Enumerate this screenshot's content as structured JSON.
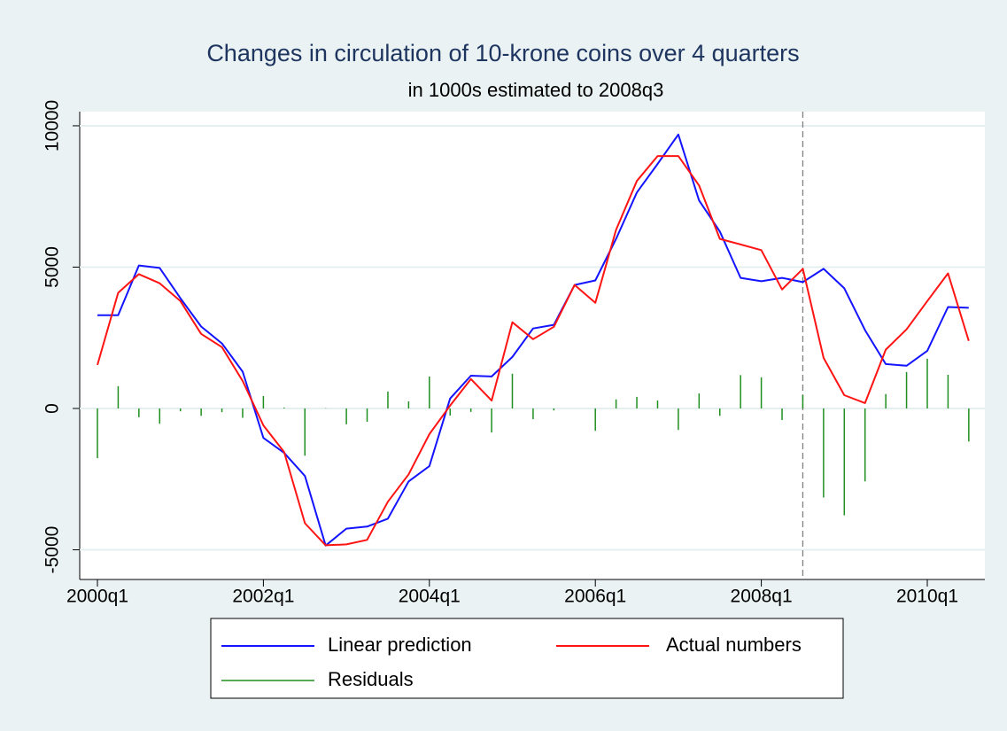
{
  "chart_data": {
    "type": "line",
    "title": "Changes in circulation of 10-krone coins over 4 quarters",
    "subtitle": "in 1000s estimated to 2008q3",
    "categories": [
      "2000q1",
      null,
      null,
      null,
      null,
      null,
      null,
      null,
      "2002q1",
      null,
      null,
      null,
      null,
      null,
      null,
      null,
      "2004q1",
      null,
      null,
      null,
      null,
      null,
      null,
      null,
      "2006q1",
      null,
      null,
      null,
      null,
      null,
      null,
      null,
      "2008q1",
      null,
      null,
      null,
      null,
      null,
      null,
      null,
      "2010q1",
      null,
      null
    ],
    "series": [
      {
        "name": "Linear prediction",
        "color": "#1414ff",
        "style": "line",
        "values": [
          3300,
          3300,
          5060,
          4970,
          3900,
          2900,
          2300,
          1300,
          -1040,
          -1570,
          -2390,
          -4850,
          -4250,
          -4180,
          -3900,
          -2580,
          -2040,
          350,
          1160,
          1130,
          1820,
          2830,
          2960,
          4370,
          4530,
          6000,
          7640,
          8650,
          9690,
          7360,
          6260,
          4620,
          4500,
          4620,
          4470,
          4940,
          4250,
          2770,
          1570,
          1510,
          2040,
          3590,
          3560
        ]
      },
      {
        "name": "Actual numbers",
        "color": "#ff1414",
        "style": "line",
        "values": [
          1540,
          4090,
          4750,
          4430,
          3800,
          2640,
          2170,
          970,
          -600,
          -1540,
          -4060,
          -4840,
          -4810,
          -4650,
          -3300,
          -2330,
          -910,
          100,
          1040,
          280,
          3050,
          2450,
          2890,
          4370,
          3740,
          6320,
          8050,
          8930,
          8930,
          7890,
          6000,
          5800,
          5600,
          4210,
          4940,
          1790,
          470,
          190,
          2080,
          2800,
          3800,
          4780,
          2390
        ]
      },
      {
        "name": "Residuals",
        "color": "#1f8f1f",
        "style": "spike",
        "values": [
          -1760,
          790,
          -310,
          -540,
          -100,
          -260,
          -130,
          -330,
          440,
          30,
          -1670,
          10,
          -560,
          -470,
          600,
          250,
          1130,
          -250,
          -120,
          -850,
          1230,
          -380,
          -70,
          0,
          -790,
          320,
          410,
          280,
          -760,
          530,
          -260,
          1180,
          1100,
          -410,
          470,
          -3150,
          -3780,
          -2580,
          510,
          1290,
          1760,
          1190,
          -1170
        ]
      }
    ],
    "ylim": [
      -6050,
      10500
    ],
    "yticks": [
      -5000,
      0,
      5000,
      10000
    ],
    "grid": true,
    "vline_index": 34,
    "legend": "bottom"
  }
}
